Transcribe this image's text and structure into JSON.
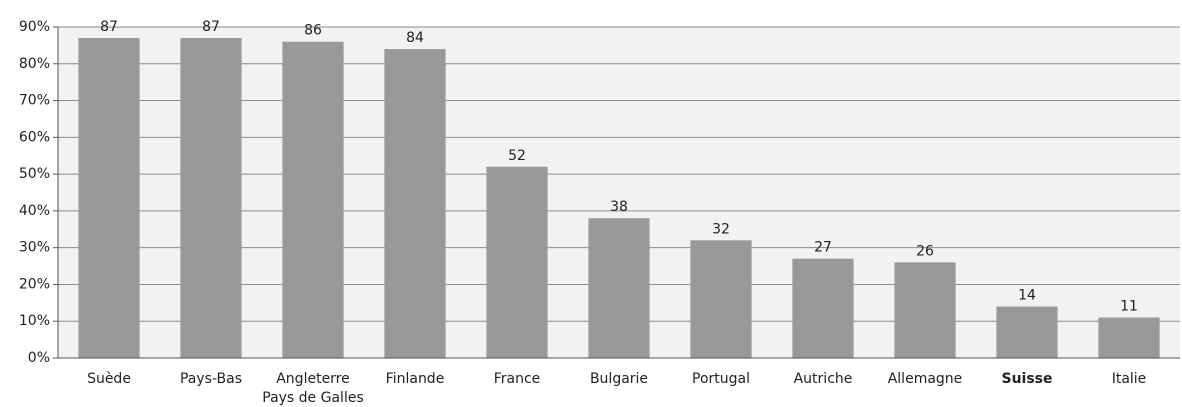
{
  "chart_data": {
    "type": "bar",
    "categories": [
      "Suède",
      "Pays-Bas",
      "Angleterre\nPays de Galles",
      "Finlande",
      "France",
      "Bulgarie",
      "Portugal",
      "Autriche",
      "Allemagne",
      "Suisse",
      "Italie"
    ],
    "values": [
      87,
      87,
      86,
      84,
      52,
      38,
      32,
      27,
      26,
      14,
      11
    ],
    "color": "#999999",
    "bold_category": "Suisse",
    "ylim": [
      0,
      90
    ],
    "yticks": [
      {
        "value": 0,
        "label": "0%"
      },
      {
        "value": 10,
        "label": "10%"
      },
      {
        "value": 20,
        "label": "20%"
      },
      {
        "value": 30,
        "label": "30%"
      },
      {
        "value": 40,
        "label": "40%"
      },
      {
        "value": 50,
        "label": "50%"
      },
      {
        "value": 60,
        "label": "60%"
      },
      {
        "value": 70,
        "label": "70%"
      },
      {
        "value": 80,
        "label": "80%"
      },
      {
        "value": 90,
        "label": "90%"
      }
    ],
    "grid": true
  }
}
